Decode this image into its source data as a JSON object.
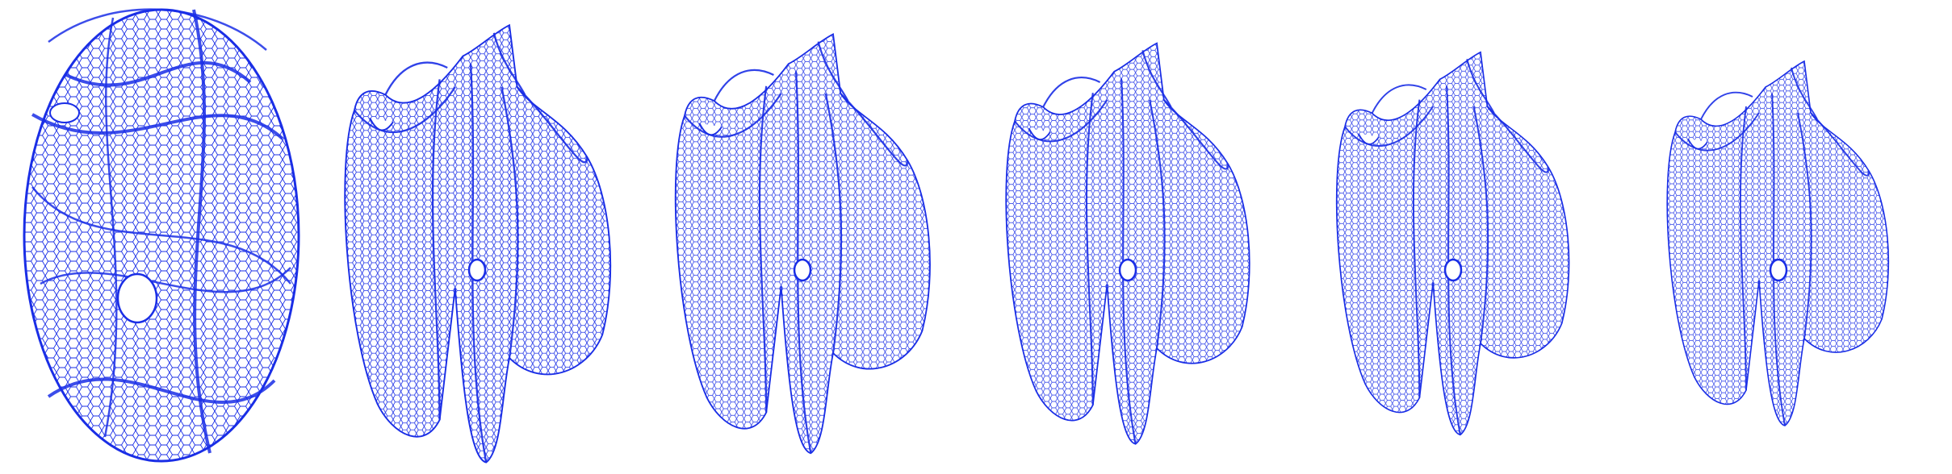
{
  "figure": {
    "description_visible_text": "",
    "mesh_color": "#1a2ee6",
    "background": "#ffffff",
    "panel_count": 6,
    "panels": [
      {
        "id": "stage-1",
        "shape": "chaotic-ellipsoid"
      },
      {
        "id": "stage-2",
        "shape": "folded-surface"
      },
      {
        "id": "stage-3",
        "shape": "folded-surface"
      },
      {
        "id": "stage-4",
        "shape": "folded-surface"
      },
      {
        "id": "stage-5",
        "shape": "folded-surface"
      },
      {
        "id": "stage-6",
        "shape": "folded-surface"
      }
    ]
  }
}
